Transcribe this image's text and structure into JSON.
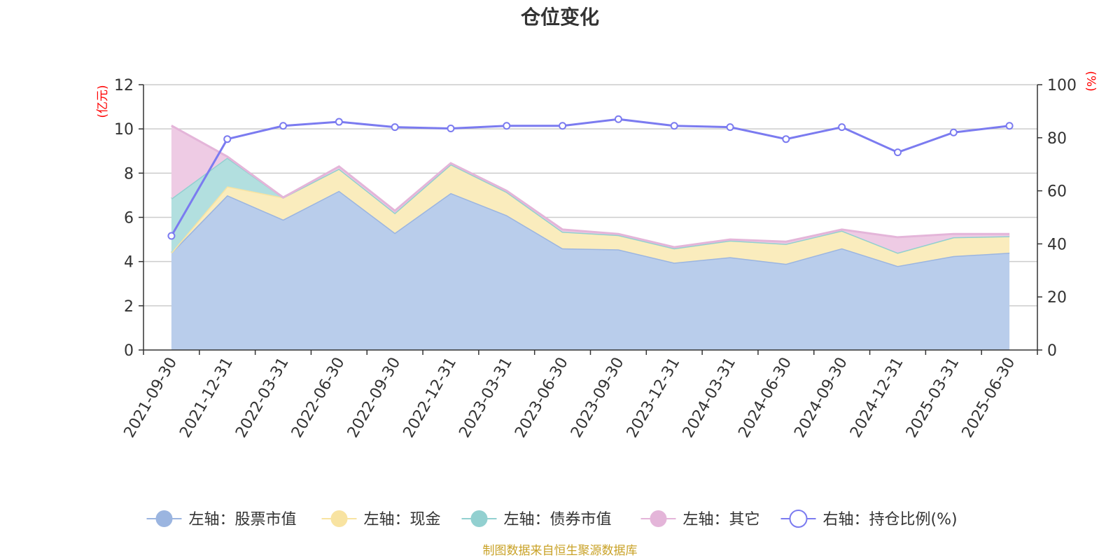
{
  "chart_data": {
    "type": "area",
    "title": "仓位变化",
    "left_unit": "(亿元)",
    "right_unit": "(%)",
    "categories": [
      "2021-09-30",
      "2021-12-31",
      "2022-03-31",
      "2022-06-30",
      "2022-09-30",
      "2022-12-31",
      "2023-03-31",
      "2023-06-30",
      "2023-09-30",
      "2023-12-31",
      "2024-03-31",
      "2024-06-30",
      "2024-09-30",
      "2024-12-31",
      "2025-03-31",
      "2025-06-30"
    ],
    "left_axis": {
      "min": 0,
      "max": 12,
      "ticks": [
        "0",
        "2",
        "4",
        "6",
        "8",
        "10",
        "12"
      ]
    },
    "right_axis": {
      "min": 0,
      "max": 100,
      "ticks": [
        "0",
        "20",
        "40",
        "60",
        "80",
        "100"
      ]
    },
    "series": [
      {
        "name": "左轴：股票市值",
        "axis": "left",
        "type": "area",
        "color": "#9bb5e0",
        "fill": "#b9cdeb",
        "values": [
          4.4,
          7.0,
          5.9,
          7.2,
          5.3,
          7.1,
          6.1,
          4.6,
          4.55,
          3.95,
          4.2,
          3.9,
          4.6,
          3.8,
          4.25,
          4.4
        ]
      },
      {
        "name": "左轴：现金",
        "axis": "left",
        "type": "area",
        "color": "#f8e3a1",
        "fill": "#faecbd",
        "values": [
          0.0,
          0.4,
          1.0,
          1.0,
          0.9,
          1.3,
          1.05,
          0.75,
          0.65,
          0.65,
          0.75,
          0.9,
          0.8,
          0.6,
          0.85,
          0.75
        ]
      },
      {
        "name": "左轴：债券市值",
        "axis": "left",
        "type": "area",
        "color": "#92d0d0",
        "fill": "#b2dfdf",
        "values": [
          2.45,
          1.3,
          0,
          0,
          0,
          0,
          0,
          0,
          0,
          0,
          0,
          0,
          0,
          0,
          0,
          0
        ]
      },
      {
        "name": "左轴：其它",
        "axis": "left",
        "type": "area",
        "color": "#e4b5d9",
        "fill": "#eecbe4",
        "values": [
          3.3,
          0.05,
          0.0,
          0.1,
          0.1,
          0.05,
          0.05,
          0.1,
          0.05,
          0.05,
          0.05,
          0.1,
          0.05,
          0.7,
          0.15,
          0.1
        ]
      },
      {
        "name": "右轴：持仓比例(%)",
        "axis": "right",
        "type": "line",
        "color": "#7b7bf0",
        "values": [
          43,
          79.5,
          84.5,
          86,
          84,
          83.5,
          84.5,
          84.5,
          87,
          84.5,
          84,
          79.5,
          84,
          74.5,
          82,
          84.5
        ]
      }
    ],
    "legend_position": "bottom",
    "grid": true
  },
  "footer": {
    "source": "制图数据来自恒生聚源数据库"
  }
}
